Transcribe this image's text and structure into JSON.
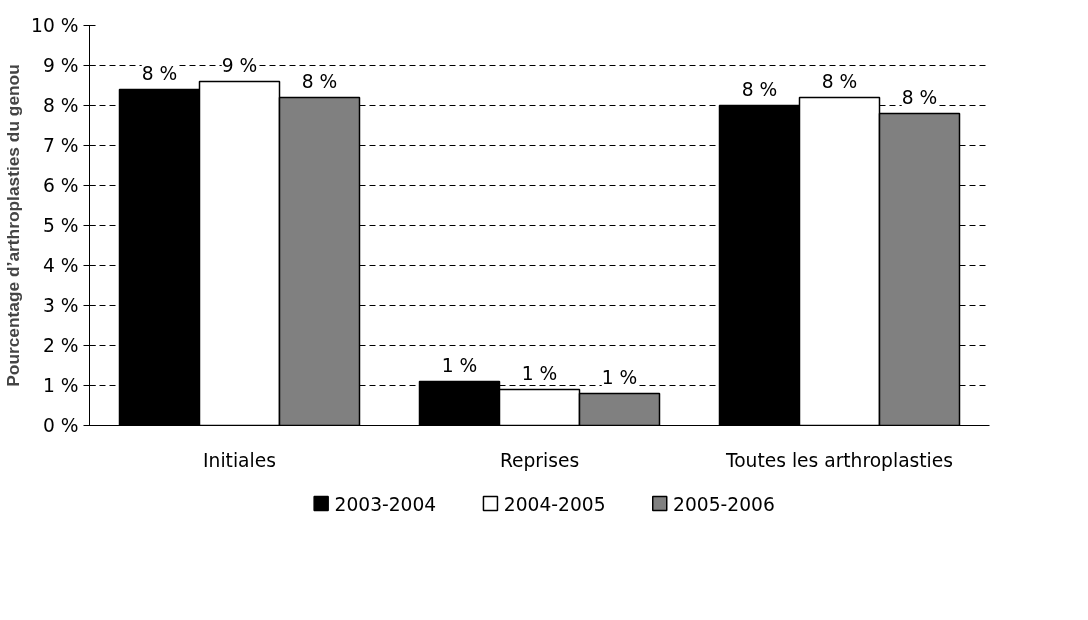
{
  "chart_data": {
    "type": "bar",
    "ylabel": "Pourcentage d’arthroplasties du genou",
    "categories": [
      "Initiales",
      "Reprises",
      "Toutes les arthroplasties"
    ],
    "series": [
      {
        "name": "2003-2004",
        "color": "#000000",
        "values": [
          8.4,
          1.1,
          8.0
        ],
        "value_labels": [
          "8 %",
          "1 %",
          "8 %"
        ]
      },
      {
        "name": "2004-2005",
        "color": "#ffffff",
        "values": [
          8.6,
          0.9,
          8.2
        ],
        "value_labels": [
          "9 %",
          "1 %",
          "8 %"
        ]
      },
      {
        "name": "2005-2006",
        "color": "#808080",
        "values": [
          8.2,
          0.8,
          7.8
        ],
        "value_labels": [
          "8 %",
          "1 %",
          "8 %"
        ]
      }
    ],
    "ylim": [
      0,
      10
    ],
    "yticks": [
      {
        "value": 0,
        "label": "0 %"
      },
      {
        "value": 1,
        "label": "1 %"
      },
      {
        "value": 2,
        "label": "2 %"
      },
      {
        "value": 3,
        "label": "3 %"
      },
      {
        "value": 4,
        "label": "4 %"
      },
      {
        "value": 5,
        "label": "5 %"
      },
      {
        "value": 6,
        "label": "6 %"
      },
      {
        "value": 7,
        "label": "7 %"
      },
      {
        "value": 8,
        "label": "8 %"
      },
      {
        "value": 9,
        "label": "9 %"
      },
      {
        "value": 10,
        "label": "10 %"
      }
    ],
    "grid": "y",
    "legend": "bottom"
  }
}
